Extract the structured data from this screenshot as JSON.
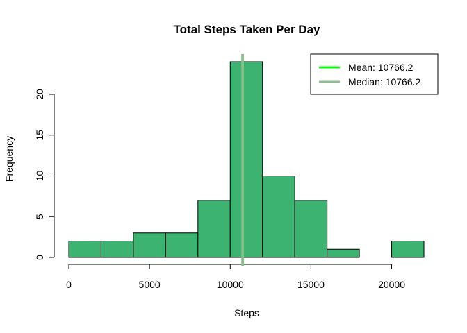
{
  "chart_data": {
    "type": "bar",
    "title": "Total Steps Taken Per Day",
    "xlabel": "Steps",
    "ylabel": "Frequency",
    "xlim": [
      0,
      22000
    ],
    "ylim": [
      0,
      24
    ],
    "xticks": [
      0,
      5000,
      10000,
      15000,
      20000
    ],
    "yticks": [
      0,
      5,
      10,
      15,
      20
    ],
    "bins": [
      {
        "start": 0,
        "end": 2000,
        "count": 2
      },
      {
        "start": 2000,
        "end": 4000,
        "count": 2
      },
      {
        "start": 4000,
        "end": 6000,
        "count": 3
      },
      {
        "start": 6000,
        "end": 8000,
        "count": 3
      },
      {
        "start": 8000,
        "end": 10000,
        "count": 7
      },
      {
        "start": 10000,
        "end": 12000,
        "count": 24
      },
      {
        "start": 12000,
        "end": 14000,
        "count": 10
      },
      {
        "start": 14000,
        "end": 16000,
        "count": 7
      },
      {
        "start": 16000,
        "end": 18000,
        "count": 1
      },
      {
        "start": 18000,
        "end": 20000,
        "count": 0
      },
      {
        "start": 20000,
        "end": 22000,
        "count": 2
      }
    ],
    "bar_color": "#3CB371",
    "bar_border": "#000000",
    "grid": false,
    "vertical_lines": [
      {
        "name": "Mean",
        "value": 10766.2,
        "color": "#00FF00"
      },
      {
        "name": "Median",
        "value": 10766.2,
        "color": "#8FBC8F"
      }
    ],
    "legend": {
      "position": "top-right",
      "entries": [
        {
          "label": "Mean:  10766.2",
          "color": "#00FF00"
        },
        {
          "label": "Median:  10766.2",
          "color": "#8FBC8F"
        }
      ]
    }
  }
}
